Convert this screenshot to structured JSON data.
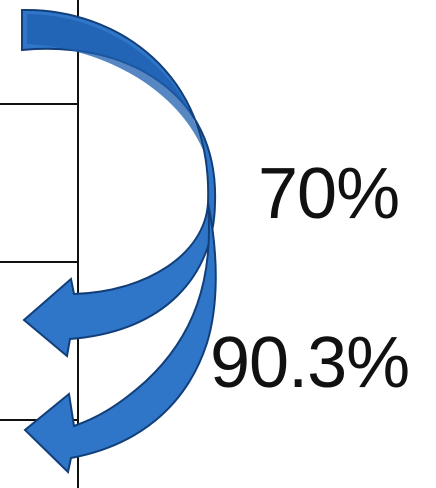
{
  "labels": {
    "first_percentage": "70%",
    "second_percentage": "90.3%"
  },
  "colors": {
    "arrow_fill": "#2f76c9",
    "arrow_shadow": "#1f5fae",
    "arrow_stroke": "#123f7a",
    "table_lines": "#111111",
    "text": "#111111",
    "background": "#ffffff"
  },
  "icons": {
    "curved_arrow": "curved-arrow-icon"
  }
}
